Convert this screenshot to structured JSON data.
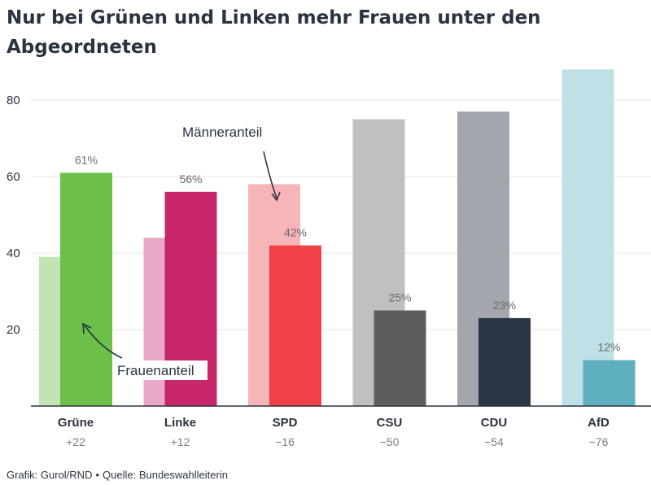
{
  "chart_data": {
    "type": "bar",
    "title": "Nur bei Grünen und Linken mehr Frauen unter den Abgeordneten",
    "categories": [
      "Grüne",
      "Linke",
      "SPD",
      "CSU",
      "CDU",
      "AfD"
    ],
    "differences": [
      "+22",
      "+12",
      "−16",
      "−50",
      "−54",
      "−76"
    ],
    "series": [
      {
        "name": "Männeranteil",
        "values": [
          39,
          44,
          58,
          75,
          77,
          88
        ],
        "colors": [
          "#c2e3b3",
          "#e9a8c7",
          "#f8b5b7",
          "#c0c0c0",
          "#a3a7ad",
          "#bfe0e6"
        ]
      },
      {
        "name": "Frauenanteil",
        "values": [
          61,
          56,
          42,
          25,
          23,
          12
        ],
        "labels": [
          "61%",
          "56%",
          "42%",
          "25%",
          "23%",
          "12%"
        ],
        "colors": [
          "#6cc04a",
          "#c8266a",
          "#ef4146",
          "#5d5d5d",
          "#2a3643",
          "#5fb0bf"
        ]
      }
    ],
    "yticks": [
      20,
      40,
      60,
      80
    ],
    "ylim": [
      0,
      92
    ],
    "grid": true,
    "annotations": [
      "Männeranteil",
      "Frauenanteil"
    ]
  },
  "footer": {
    "credit": "Grafik: Gurol/RND",
    "separator": "•",
    "source": "Quelle: Bundeswahlleiterin"
  }
}
